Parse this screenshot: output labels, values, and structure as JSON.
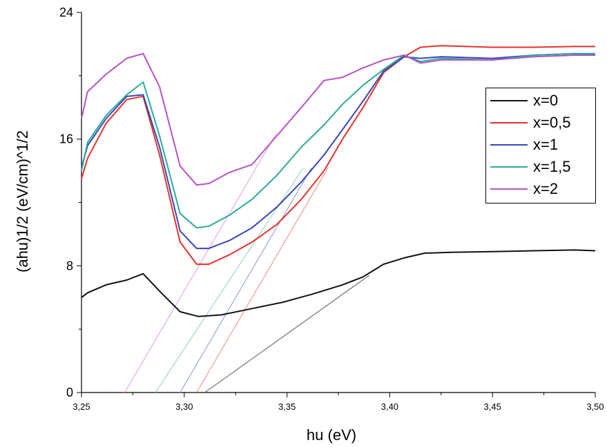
{
  "chart_data": {
    "type": "line",
    "xlabel": "hu (eV)",
    "ylabel": "(ahu)1/2 (eV/cm)^1/2",
    "xlim": [
      3.25,
      3.5
    ],
    "ylim": [
      0,
      24
    ],
    "x_ticks": [
      "3,25",
      "3,30",
      "3,35",
      "3,40",
      "3,45",
      "3,50"
    ],
    "y_ticks": [
      "0",
      "8",
      "16",
      "24"
    ],
    "legend_position": "top-right",
    "series": [
      {
        "name": "x=0",
        "color": "#111111",
        "x": [
          3.25,
          3.253,
          3.262,
          3.272,
          3.28,
          3.288,
          3.298,
          3.307,
          3.318,
          3.333,
          3.348,
          3.362,
          3.377,
          3.387,
          3.397,
          3.407,
          3.417,
          3.43,
          3.45,
          3.47,
          3.49,
          3.5
        ],
        "y": [
          6.0,
          6.3,
          6.8,
          7.1,
          7.5,
          6.4,
          5.1,
          4.8,
          4.9,
          5.3,
          5.7,
          6.2,
          6.8,
          7.3,
          8.1,
          8.5,
          8.8,
          8.85,
          8.9,
          8.95,
          9.0,
          8.95
        ]
      },
      {
        "name": "x=0,5",
        "color": "#e8302a",
        "x": [
          3.25,
          3.253,
          3.262,
          3.272,
          3.28,
          3.288,
          3.298,
          3.306,
          3.312,
          3.322,
          3.333,
          3.345,
          3.357,
          3.368,
          3.377,
          3.387,
          3.397,
          3.407,
          3.415,
          3.425,
          3.45,
          3.47,
          3.49,
          3.5
        ],
        "y": [
          13.5,
          14.8,
          17.0,
          18.5,
          18.7,
          15.0,
          9.5,
          8.1,
          8.1,
          8.7,
          9.5,
          10.6,
          12.2,
          14.0,
          16.0,
          18.0,
          20.2,
          21.2,
          21.8,
          21.9,
          21.8,
          21.8,
          21.85,
          21.85
        ]
      },
      {
        "name": "x=1",
        "color": "#3446b8",
        "x": [
          3.25,
          3.253,
          3.262,
          3.272,
          3.28,
          3.288,
          3.298,
          3.306,
          3.312,
          3.322,
          3.333,
          3.345,
          3.357,
          3.368,
          3.377,
          3.387,
          3.397,
          3.407,
          3.415,
          3.425,
          3.45,
          3.47,
          3.49,
          3.5
        ],
        "y": [
          14.2,
          15.6,
          17.3,
          18.7,
          18.8,
          15.5,
          10.2,
          9.1,
          9.1,
          9.6,
          10.4,
          11.7,
          13.3,
          15.0,
          16.6,
          18.4,
          20.3,
          21.2,
          21.1,
          21.2,
          21.1,
          21.3,
          21.4,
          21.35
        ]
      },
      {
        "name": "x=1,5",
        "color": "#2aaa96",
        "x": [
          3.25,
          3.253,
          3.262,
          3.272,
          3.28,
          3.288,
          3.298,
          3.306,
          3.312,
          3.322,
          3.333,
          3.345,
          3.357,
          3.368,
          3.377,
          3.387,
          3.397,
          3.407,
          3.415,
          3.425,
          3.45,
          3.47,
          3.49,
          3.5
        ],
        "y": [
          14.0,
          15.8,
          17.5,
          18.8,
          19.6,
          16.2,
          11.3,
          10.4,
          10.5,
          11.2,
          12.2,
          13.7,
          15.5,
          16.9,
          18.2,
          19.4,
          20.4,
          21.3,
          20.9,
          21.1,
          21.0,
          21.3,
          21.4,
          21.4
        ]
      },
      {
        "name": "x=2",
        "color": "#b552c4",
        "x": [
          3.25,
          3.253,
          3.262,
          3.272,
          3.28,
          3.288,
          3.298,
          3.306,
          3.312,
          3.322,
          3.333,
          3.345,
          3.357,
          3.368,
          3.377,
          3.387,
          3.397,
          3.407,
          3.415,
          3.425,
          3.45,
          3.47,
          3.49,
          3.5
        ],
        "y": [
          17.3,
          19.0,
          20.1,
          21.1,
          21.4,
          19.3,
          14.3,
          13.1,
          13.2,
          13.9,
          14.4,
          16.2,
          18.0,
          19.7,
          19.9,
          20.5,
          21.0,
          21.3,
          20.8,
          21.0,
          21.0,
          21.2,
          21.3,
          21.3
        ]
      }
    ],
    "fit_lines": [
      {
        "color": "#555555",
        "from": [
          3.31,
          0
        ],
        "to": [
          3.39,
          7.4
        ]
      },
      {
        "color": "#ea8a86",
        "from": [
          3.306,
          0
        ],
        "to": [
          3.37,
          14.2
        ]
      },
      {
        "color": "#8a92dc",
        "from": [
          3.298,
          0
        ],
        "to": [
          3.362,
          14.2
        ]
      },
      {
        "color": "#86cfc4",
        "from": [
          3.286,
          0
        ],
        "to": [
          3.358,
          14.2
        ]
      },
      {
        "color": "#dd9ae6",
        "from": [
          3.271,
          0
        ],
        "to": [
          3.345,
          16.4
        ]
      }
    ]
  }
}
